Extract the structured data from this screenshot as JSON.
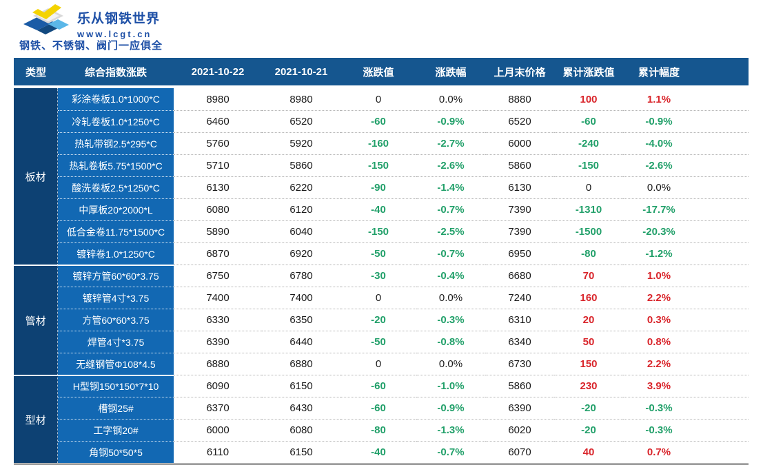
{
  "brand": {
    "name": "乐从钢铁世界",
    "url": "www.lcgt.cn",
    "tagline": "钢铁、不锈钢、阀门一应俱全"
  },
  "colors": {
    "header_bg": "#15568f",
    "group_column_bg": "#0d4173",
    "product_column_bg": "#1268b3",
    "up_red": "#d9252b",
    "down_green": "#22a06a",
    "neutral_text": "#1a1a1a",
    "brand_blue": "#1d4fa6",
    "logo_yellow": "#f4d300",
    "logo_light_blue": "#5bb7e8"
  },
  "table": {
    "columns": [
      "类型",
      "综合指数涨跌",
      "2021-10-22",
      "2021-10-21",
      "涨跌值",
      "涨跌幅",
      "上月末价格",
      "累计涨跌值",
      "累计幅度"
    ],
    "groups": [
      {
        "label": "板材",
        "rows": [
          {
            "name": "彩涂卷板1.0*1000*C",
            "price_1022": "8980",
            "price_1021": "8980",
            "change": "0",
            "change_pct": "0.0%",
            "last_month_price": "8880",
            "cum_change": "100",
            "cum_pct": "1.1%"
          },
          {
            "name": "冷轧卷板1.0*1250*C",
            "price_1022": "6460",
            "price_1021": "6520",
            "change": "-60",
            "change_pct": "-0.9%",
            "last_month_price": "6520",
            "cum_change": "-60",
            "cum_pct": "-0.9%"
          },
          {
            "name": "热轧带钢2.5*295*C",
            "price_1022": "5760",
            "price_1021": "5920",
            "change": "-160",
            "change_pct": "-2.7%",
            "last_month_price": "6000",
            "cum_change": "-240",
            "cum_pct": "-4.0%"
          },
          {
            "name": "热轧卷板5.75*1500*C",
            "price_1022": "5710",
            "price_1021": "5860",
            "change": "-150",
            "change_pct": "-2.6%",
            "last_month_price": "5860",
            "cum_change": "-150",
            "cum_pct": "-2.6%"
          },
          {
            "name": "酸洗卷板2.5*1250*C",
            "price_1022": "6130",
            "price_1021": "6220",
            "change": "-90",
            "change_pct": "-1.4%",
            "last_month_price": "6130",
            "cum_change": "0",
            "cum_pct": "0.0%"
          },
          {
            "name": "中厚板20*2000*L",
            "price_1022": "6080",
            "price_1021": "6120",
            "change": "-40",
            "change_pct": "-0.7%",
            "last_month_price": "7390",
            "cum_change": "-1310",
            "cum_pct": "-17.7%"
          },
          {
            "name": "低合金卷11.75*1500*C",
            "price_1022": "5890",
            "price_1021": "6040",
            "change": "-150",
            "change_pct": "-2.5%",
            "last_month_price": "7390",
            "cum_change": "-1500",
            "cum_pct": "-20.3%"
          },
          {
            "name": "镀锌卷1.0*1250*C",
            "price_1022": "6870",
            "price_1021": "6920",
            "change": "-50",
            "change_pct": "-0.7%",
            "last_month_price": "6950",
            "cum_change": "-80",
            "cum_pct": "-1.2%"
          }
        ]
      },
      {
        "label": "管材",
        "rows": [
          {
            "name": "镀锌方管60*60*3.75",
            "price_1022": "6750",
            "price_1021": "6780",
            "change": "-30",
            "change_pct": "-0.4%",
            "last_month_price": "6680",
            "cum_change": "70",
            "cum_pct": "1.0%"
          },
          {
            "name": "镀锌管4寸*3.75",
            "price_1022": "7400",
            "price_1021": "7400",
            "change": "0",
            "change_pct": "0.0%",
            "last_month_price": "7240",
            "cum_change": "160",
            "cum_pct": "2.2%"
          },
          {
            "name": "方管60*60*3.75",
            "price_1022": "6330",
            "price_1021": "6350",
            "change": "-20",
            "change_pct": "-0.3%",
            "last_month_price": "6310",
            "cum_change": "20",
            "cum_pct": "0.3%"
          },
          {
            "name": "焊管4寸*3.75",
            "price_1022": "6390",
            "price_1021": "6440",
            "change": "-50",
            "change_pct": "-0.8%",
            "last_month_price": "6340",
            "cum_change": "50",
            "cum_pct": "0.8%"
          },
          {
            "name": "无缝钢管Φ108*4.5",
            "price_1022": "6880",
            "price_1021": "6880",
            "change": "0",
            "change_pct": "0.0%",
            "last_month_price": "6730",
            "cum_change": "150",
            "cum_pct": "2.2%"
          }
        ]
      },
      {
        "label": "型材",
        "rows": [
          {
            "name": "H型钢150*150*7*10",
            "price_1022": "6090",
            "price_1021": "6150",
            "change": "-60",
            "change_pct": "-1.0%",
            "last_month_price": "5860",
            "cum_change": "230",
            "cum_pct": "3.9%"
          },
          {
            "name": "槽钢25#",
            "price_1022": "6370",
            "price_1021": "6430",
            "change": "-60",
            "change_pct": "-0.9%",
            "last_month_price": "6390",
            "cum_change": "-20",
            "cum_pct": "-0.3%"
          },
          {
            "name": "工字钢20#",
            "price_1022": "6000",
            "price_1021": "6080",
            "change": "-80",
            "change_pct": "-1.3%",
            "last_month_price": "6020",
            "cum_change": "-20",
            "cum_pct": "-0.3%"
          },
          {
            "name": "角钢50*50*5",
            "price_1022": "6110",
            "price_1021": "6150",
            "change": "-40",
            "change_pct": "-0.7%",
            "last_month_price": "6070",
            "cum_change": "40",
            "cum_pct": "0.7%"
          }
        ]
      }
    ]
  }
}
